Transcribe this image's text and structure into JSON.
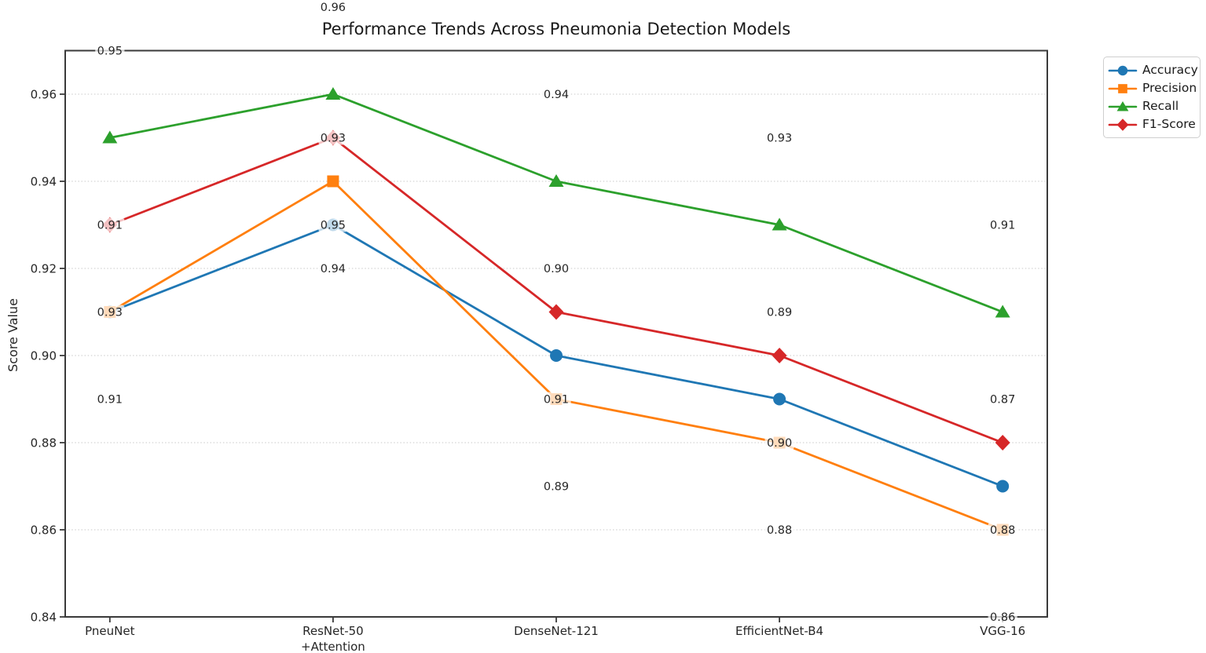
{
  "figure": {
    "background": "#ffffff"
  },
  "chart_data": {
    "type": "line",
    "title": "Performance Trends Across Pneumonia Detection Models",
    "xlabel": "",
    "ylabel": "Score Value",
    "categories": [
      "PneuNet",
      "ResNet-50\n+Attention",
      "DenseNet-121",
      "EfficientNet-B4",
      "VGG-16"
    ],
    "series": [
      {
        "name": "Accuracy",
        "marker": "circle",
        "color": "#1f77b4",
        "values": [
          0.91,
          0.93,
          0.9,
          0.89,
          0.87
        ],
        "label_offset": 0.02
      },
      {
        "name": "Precision",
        "marker": "square",
        "color": "#ff7f0e",
        "values": [
          0.91,
          0.94,
          0.89,
          0.88,
          0.86
        ],
        "label_offset": -0.02
      },
      {
        "name": "Recall",
        "marker": "triangle",
        "color": "#2ca02c",
        "values": [
          0.95,
          0.96,
          0.94,
          0.93,
          0.91
        ],
        "label_offset": 0.02
      },
      {
        "name": "F1-Score",
        "marker": "diamond",
        "color": "#d62728",
        "values": [
          0.93,
          0.95,
          0.91,
          0.9,
          0.88
        ],
        "label_offset": -0.02
      }
    ],
    "ylim": [
      0.84,
      0.97
    ],
    "yticks": [
      0.84,
      0.86,
      0.88,
      0.9,
      0.92,
      0.94,
      0.96
    ],
    "value_label_format": "2dp",
    "grid": "horizontal-dotted",
    "legend": {
      "position": "outside-upper-right",
      "entries": [
        "Accuracy",
        "Precision",
        "Recall",
        "F1-Score"
      ]
    }
  }
}
